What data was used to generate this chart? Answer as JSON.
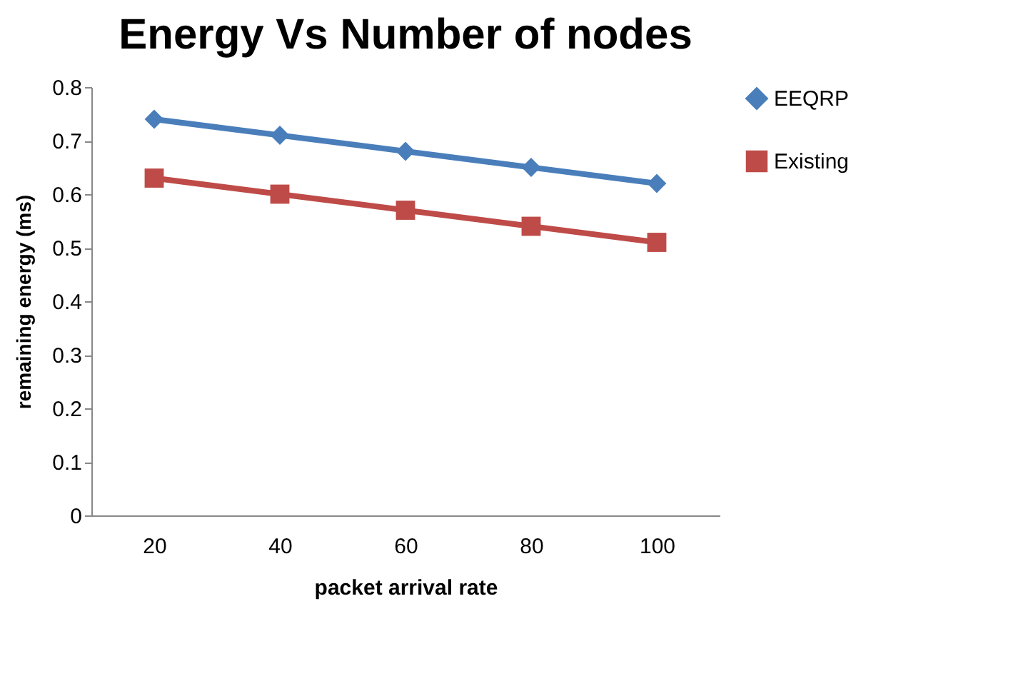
{
  "chart_data": {
    "type": "line",
    "title": "Energy Vs Number of nodes",
    "xlabel": "packet arrival rate",
    "ylabel": "remaining energy (ms)",
    "categories": [
      "20",
      "40",
      "60",
      "80",
      "100"
    ],
    "series": [
      {
        "name": "EEQRP",
        "color": "#4a7ebb",
        "marker": "diamond",
        "values": [
          0.74,
          0.71,
          0.68,
          0.65,
          0.62
        ]
      },
      {
        "name": "Existing",
        "color": "#be4b48",
        "marker": "square",
        "values": [
          0.63,
          0.6,
          0.57,
          0.54,
          0.51
        ]
      }
    ],
    "ylim": [
      0,
      0.8
    ],
    "yticks": [
      0,
      0.1,
      0.2,
      0.3,
      0.4,
      0.5,
      0.6,
      0.7,
      0.8
    ],
    "legend": "right",
    "line_style": "solid"
  }
}
